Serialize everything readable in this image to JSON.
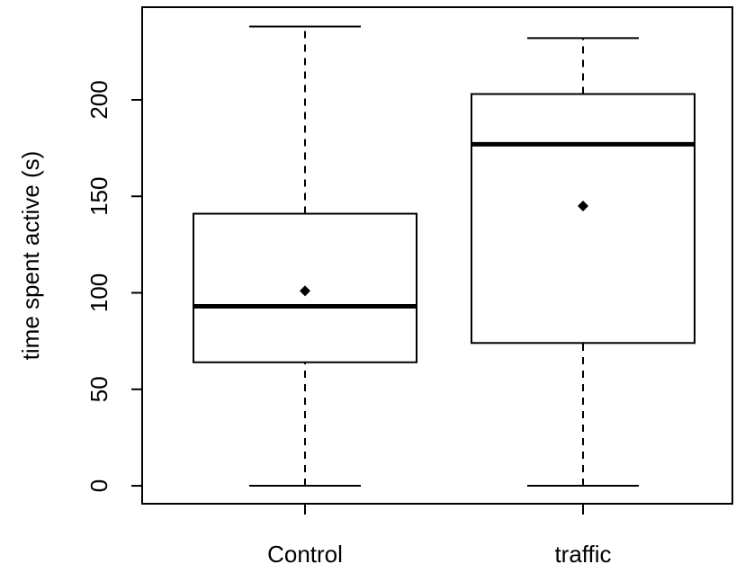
{
  "chart_data": {
    "type": "box",
    "y_label": "time spent active (s)",
    "categories": [
      "Control",
      "traffic"
    ],
    "boxes": [
      {
        "min": 0,
        "q1": 64,
        "median": 93,
        "q3": 141,
        "max": 238,
        "mean": 101
      },
      {
        "min": 0,
        "q1": 74,
        "median": 177,
        "q3": 203,
        "max": 232,
        "mean": 145
      }
    ],
    "ylim": [
      -9.3,
      248
    ],
    "yticks": [
      0,
      50,
      100,
      150,
      200
    ],
    "color": "#000000"
  }
}
